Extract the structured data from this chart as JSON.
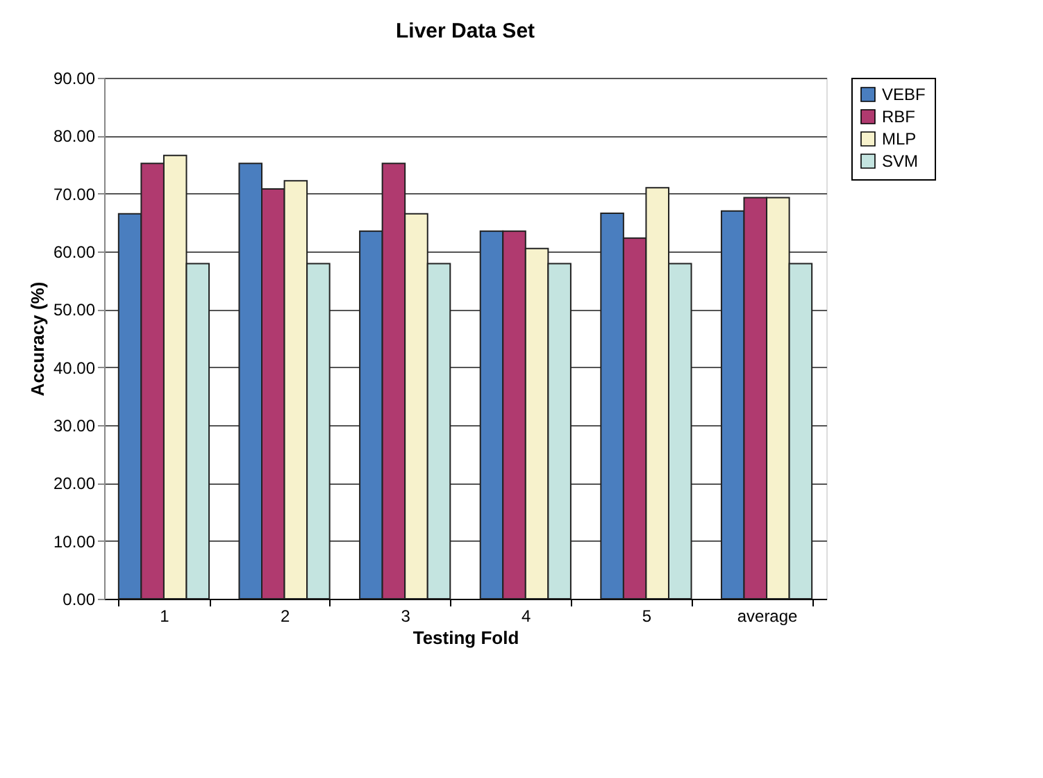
{
  "chart_data": {
    "type": "bar",
    "title": "Liver Data Set",
    "xlabel": "Testing Fold",
    "ylabel": "Accuracy (%)",
    "categories": [
      "1",
      "2",
      "3",
      "4",
      "5",
      "average"
    ],
    "series": [
      {
        "name": "VEBF",
        "color": "#4a7ebf",
        "values": [
          66.5,
          75.2,
          63.5,
          63.5,
          66.6,
          67.0
        ]
      },
      {
        "name": "RBF",
        "color": "#b03a6f",
        "values": [
          75.2,
          70.8,
          75.2,
          63.5,
          62.3,
          69.3
        ]
      },
      {
        "name": "MLP",
        "color": "#f7f2cc",
        "values": [
          76.6,
          72.2,
          66.5,
          60.5,
          71.0,
          69.3
        ]
      },
      {
        "name": "SVM",
        "color": "#c4e4e0",
        "values": [
          57.9,
          57.9,
          57.9,
          57.9,
          57.9,
          57.9
        ]
      }
    ],
    "ylim": [
      0,
      90
    ],
    "yticks": [
      {
        "value": 0,
        "label": "0.00"
      },
      {
        "value": 10,
        "label": "10.00"
      },
      {
        "value": 20,
        "label": "20.00"
      },
      {
        "value": 30,
        "label": "30.00"
      },
      {
        "value": 40,
        "label": "40.00"
      },
      {
        "value": 50,
        "label": "50.00"
      },
      {
        "value": 60,
        "label": "60.00"
      },
      {
        "value": 70,
        "label": "70.00"
      },
      {
        "value": 80,
        "label": "80.00"
      },
      {
        "value": 90,
        "label": "90.00"
      }
    ],
    "grid": "y",
    "legend": "right"
  }
}
